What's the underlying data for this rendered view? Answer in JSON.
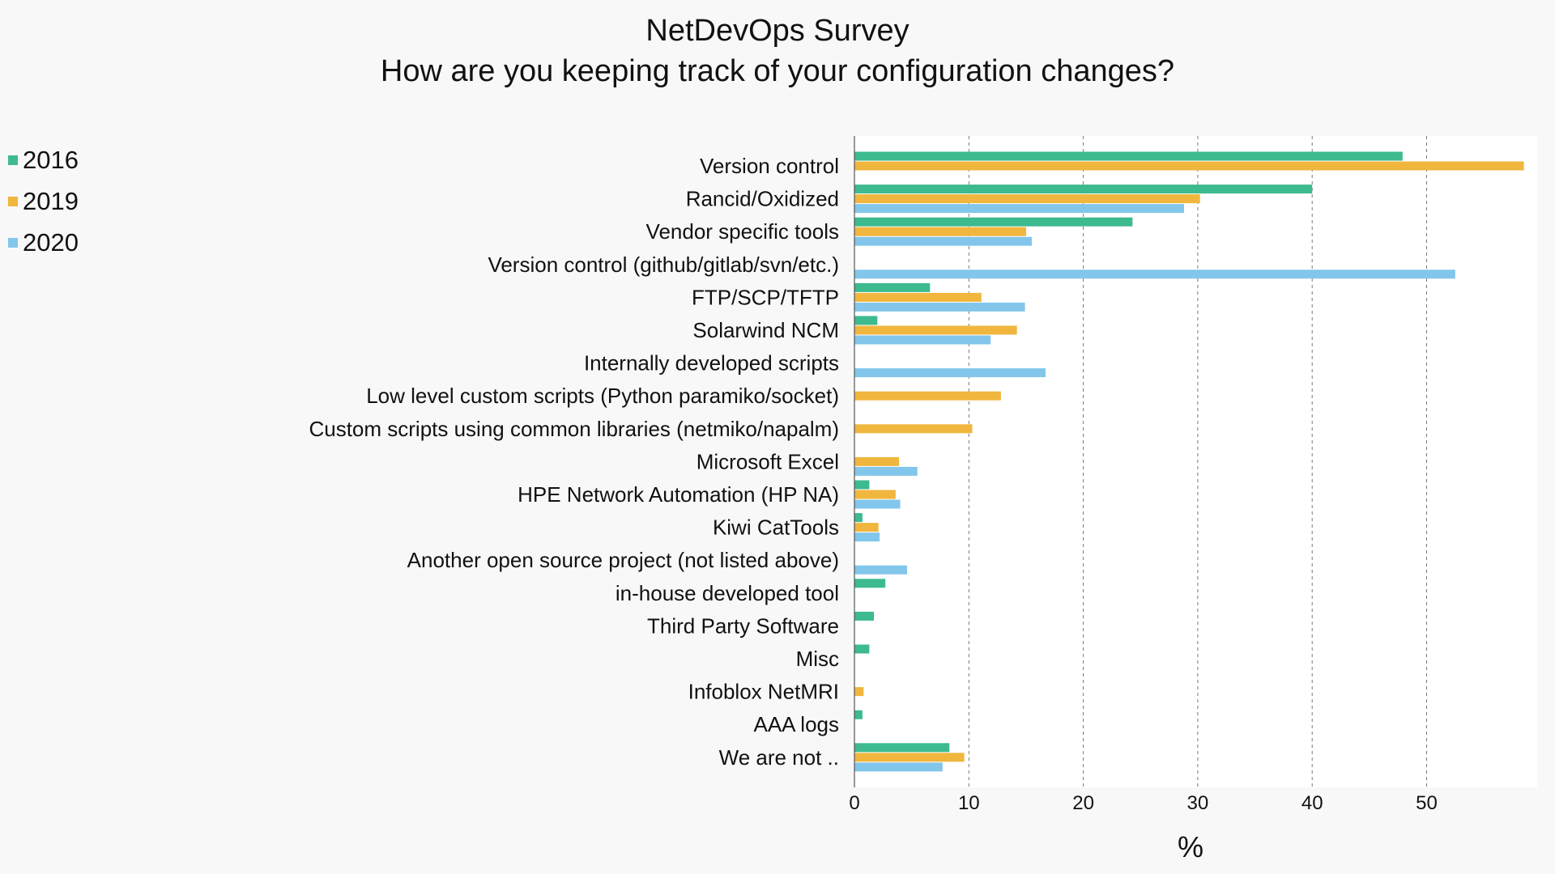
{
  "chart_data": {
    "type": "bar",
    "orientation": "horizontal",
    "title": "NetDevOps Survey",
    "subtitle": "How are you keeping track of your configuration changes?",
    "xlabel": "%",
    "ylabel": "",
    "xlim": [
      0,
      59
    ],
    "xticks": [
      0,
      10,
      20,
      30,
      40,
      50
    ],
    "grid": "vertical dashed",
    "legend_position": "top-left",
    "categories": [
      "Version control",
      "Rancid/Oxidized",
      "Vendor specific tools",
      "Version control (github/gitlab/svn/etc.)",
      "FTP/SCP/TFTP",
      "Solarwind NCM",
      "Internally developed scripts",
      "Low level custom scripts (Python paramiko/socket)",
      "Custom scripts using common libraries (netmiko/napalm)",
      "Microsoft Excel",
      "HPE Network Automation (HP NA)",
      "Kiwi CatTools",
      "Another open source project (not listed above)",
      "in-house developed tool",
      "Third Party Software",
      "Misc",
      "Infoblox NetMRI",
      "AAA logs",
      "We are not .."
    ],
    "series": [
      {
        "name": "2016",
        "color": "#3dba8e",
        "values": [
          47.9,
          40.0,
          24.3,
          0,
          6.6,
          2.0,
          0,
          0,
          0,
          0,
          1.3,
          0.7,
          0,
          2.7,
          1.7,
          1.3,
          0,
          0.7,
          8.3
        ]
      },
      {
        "name": "2019",
        "color": "#f0b63d",
        "values": [
          58.5,
          30.2,
          15.0,
          0,
          11.1,
          14.2,
          0,
          12.8,
          10.3,
          3.9,
          3.6,
          2.1,
          0,
          0,
          0,
          0,
          0.8,
          0,
          9.6
        ]
      },
      {
        "name": "2020",
        "color": "#83c6eb",
        "values": [
          0,
          28.8,
          15.5,
          52.5,
          14.9,
          11.9,
          16.7,
          0,
          0,
          5.5,
          4.0,
          2.2,
          4.6,
          0,
          0,
          0,
          0,
          0,
          7.7
        ]
      }
    ]
  }
}
